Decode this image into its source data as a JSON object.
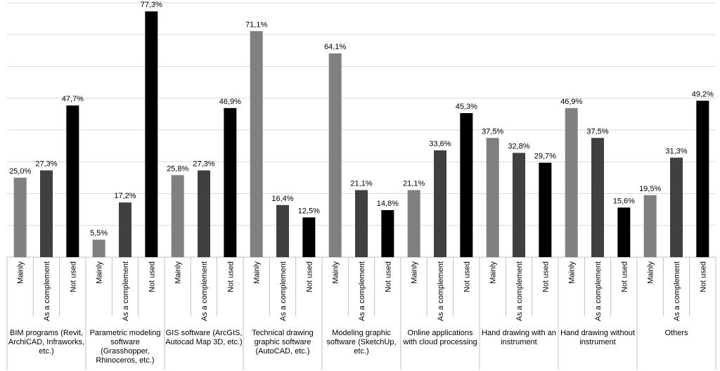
{
  "chart_data": {
    "type": "bar",
    "title": "",
    "xlabel": "",
    "ylabel": "",
    "ylim": [
      0,
      80
    ],
    "grid": true,
    "legend": "none",
    "colors": {
      "Mainly": "#808080",
      "As a complement": "#404040",
      "Not used": "#000000",
      "grid": "#d9d9d9",
      "axis": "#bfbfbf"
    },
    "sub_labels": [
      "Mainly",
      "As a complement",
      "Not used"
    ],
    "groups": [
      {
        "label": "BIM programs (Revit, ArchiCAD, Infraworks, etc.)",
        "lines": [
          "BIM programs (Revit,",
          "ArchiCAD, Infraworks,",
          "etc.)"
        ],
        "values": [
          25.0,
          27.3,
          47.7
        ],
        "value_labels": [
          "25,0%",
          "27,3%",
          "47,7%"
        ]
      },
      {
        "label": "Parametric modeling software (Grasshopper, Rhinoceros, etc.)",
        "lines": [
          "Parametric modeling",
          "software",
          "(Grasshopper,",
          "Rhinoceros, etc.)"
        ],
        "values": [
          5.5,
          17.2,
          77.3
        ],
        "value_labels": [
          "5,5%",
          "17,2%",
          "77,3%"
        ]
      },
      {
        "label": "GIS software (ArcGIS, Autocad Map 3D, etc.)",
        "lines": [
          "GIS software (ArcGIS,",
          "Autocad Map 3D, etc.)"
        ],
        "values": [
          25.8,
          27.3,
          46.9
        ],
        "value_labels": [
          "25,8%",
          "27,3%",
          "46,9%"
        ]
      },
      {
        "label": "Technical drawing graphic software (AutoCAD, etc.)",
        "lines": [
          "Technical drawing",
          "graphic software",
          "(AutoCAD, etc.)"
        ],
        "values": [
          71.1,
          16.4,
          12.5
        ],
        "value_labels": [
          "71,1%",
          "16,4%",
          "12,5%"
        ]
      },
      {
        "label": "Modeling graphic software (SketchUp, etc.)",
        "lines": [
          "Modeling graphic",
          "software (SketchUp,",
          "etc.)"
        ],
        "values": [
          64.1,
          21.1,
          14.8
        ],
        "value_labels": [
          "64,1%",
          "21,1%",
          "14,8%"
        ]
      },
      {
        "label": "Online applications with cloud processing",
        "lines": [
          "Online applications",
          "with cloud processing"
        ],
        "values": [
          21.1,
          33.6,
          45.3
        ],
        "value_labels": [
          "21,1%",
          "33,6%",
          "45,3%"
        ]
      },
      {
        "label": "Hand drawing with an instrument",
        "lines": [
          "Hand drawing with an",
          "instrument"
        ],
        "values": [
          37.5,
          32.8,
          29.7
        ],
        "value_labels": [
          "37,5%",
          "32,8%",
          "29,7%"
        ]
      },
      {
        "label": "Hand drawing without instrument",
        "lines": [
          "Hand drawing without",
          "instrument"
        ],
        "values": [
          46.9,
          37.5,
          15.6
        ],
        "value_labels": [
          "46,9%",
          "37,5%",
          "15,6%"
        ]
      },
      {
        "label": "Others",
        "lines": [
          "Others"
        ],
        "values": [
          19.5,
          31.3,
          49.2
        ],
        "value_labels": [
          "19,5%",
          "31,3%",
          "49,2%"
        ]
      }
    ]
  }
}
